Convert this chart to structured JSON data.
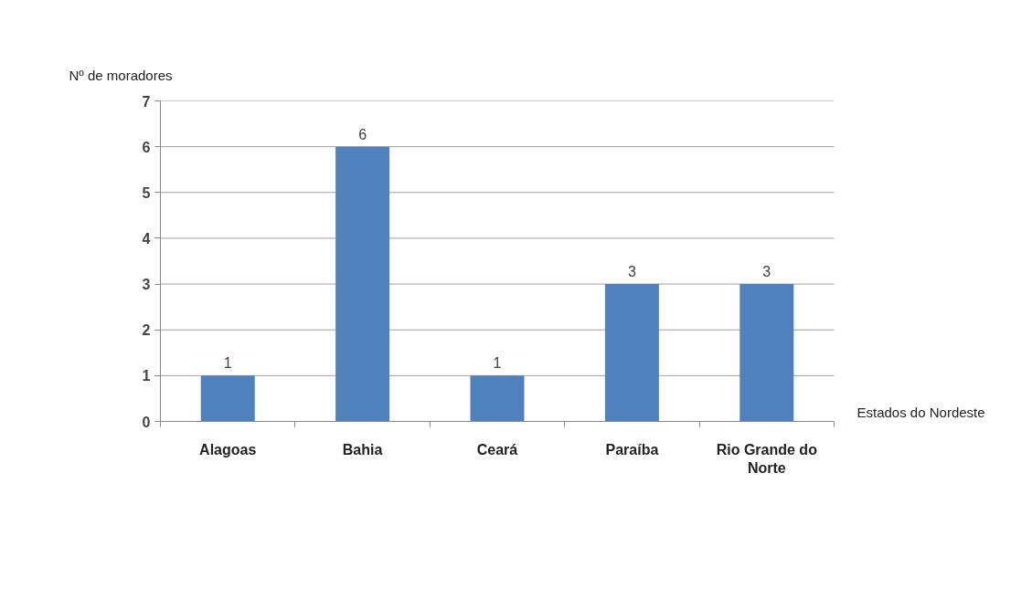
{
  "chart_data": {
    "type": "bar",
    "ylabel": "Nº de moradores",
    "xlabel": "Estados do Nordeste",
    "categories": [
      "Alagoas",
      "Bahia",
      "Ceará",
      "Paraíba",
      "Rio Grande do Norte"
    ],
    "values": [
      1,
      6,
      1,
      3,
      3
    ],
    "color": "#4f81bd",
    "ylim": [
      0,
      7
    ],
    "yticks": [
      0,
      1,
      2,
      3,
      4,
      5,
      6,
      7
    ],
    "grid": "y",
    "data_labels": true
  }
}
